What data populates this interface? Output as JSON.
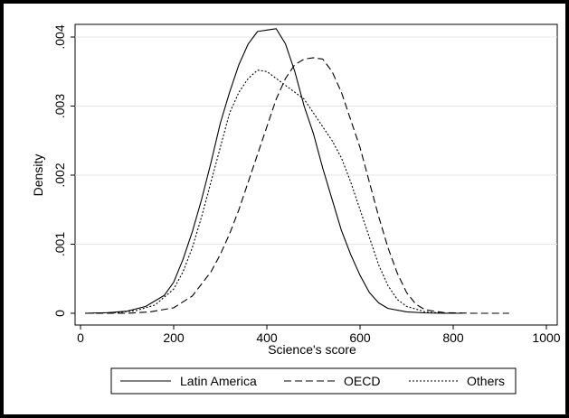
{
  "chart_data": {
    "type": "line",
    "title": "",
    "xlabel": "Science's score",
    "ylabel": "Density",
    "xlim": [
      0,
      1000
    ],
    "ylim": [
      0,
      0.0042
    ],
    "x_ticks": [
      0,
      200,
      400,
      600,
      800,
      1000
    ],
    "y_ticks": [
      0,
      0.001,
      0.002,
      0.003,
      0.004
    ],
    "y_tick_labels": [
      "0",
      ".001",
      ".002",
      ".003",
      ".004"
    ],
    "grid": "horizontal",
    "legend_position": "bottom",
    "series": [
      {
        "name": "Latin America",
        "style": "solid",
        "x": [
          10,
          60,
          100,
          140,
          180,
          200,
          220,
          240,
          260,
          280,
          300,
          320,
          340,
          360,
          380,
          400,
          420,
          440,
          460,
          480,
          500,
          520,
          540,
          560,
          580,
          600,
          620,
          640,
          660,
          700,
          740,
          780,
          820
        ],
        "y": [
          0,
          1e-05,
          3e-05,
          0.0001,
          0.00026,
          0.00045,
          0.00078,
          0.00118,
          0.00165,
          0.00218,
          0.00275,
          0.0032,
          0.0036,
          0.0039,
          0.00408,
          0.0041,
          0.00412,
          0.0039,
          0.0035,
          0.003,
          0.0026,
          0.0021,
          0.00165,
          0.0012,
          0.00085,
          0.00055,
          0.0003,
          0.00015,
          7e-05,
          2e-05,
          5e-06,
          1e-06,
          0
        ]
      },
      {
        "name": "OECD",
        "style": "dash",
        "x": [
          10,
          100,
          150,
          200,
          240,
          280,
          300,
          320,
          340,
          360,
          380,
          400,
          420,
          440,
          460,
          480,
          500,
          520,
          540,
          560,
          580,
          600,
          620,
          640,
          660,
          680,
          700,
          720,
          740,
          780,
          840,
          920
        ],
        "y": [
          0,
          0,
          2e-05,
          8e-05,
          0.00025,
          0.0006,
          0.00085,
          0.00115,
          0.0015,
          0.0019,
          0.0023,
          0.0027,
          0.0031,
          0.0034,
          0.0036,
          0.00368,
          0.0037,
          0.00368,
          0.0035,
          0.0032,
          0.0028,
          0.0024,
          0.0019,
          0.0014,
          0.00095,
          0.00058,
          0.0003,
          0.00013,
          5e-05,
          1e-05,
          0,
          0
        ]
      },
      {
        "name": "Others",
        "style": "dot",
        "x": [
          10,
          80,
          120,
          160,
          200,
          220,
          240,
          260,
          280,
          300,
          320,
          340,
          360,
          380,
          400,
          420,
          440,
          460,
          480,
          500,
          520,
          540,
          560,
          580,
          600,
          620,
          640,
          660,
          680,
          700,
          740,
          780,
          820
        ],
        "y": [
          0,
          1e-05,
          4e-05,
          0.00012,
          0.00035,
          0.0006,
          0.00095,
          0.0014,
          0.0019,
          0.0024,
          0.0029,
          0.0032,
          0.0034,
          0.00352,
          0.0035,
          0.0034,
          0.0033,
          0.0032,
          0.0031,
          0.0029,
          0.0027,
          0.0025,
          0.00225,
          0.0019,
          0.0015,
          0.0011,
          0.0007,
          0.0004,
          0.0002,
          0.0001,
          2e-05,
          0,
          0
        ]
      }
    ]
  }
}
